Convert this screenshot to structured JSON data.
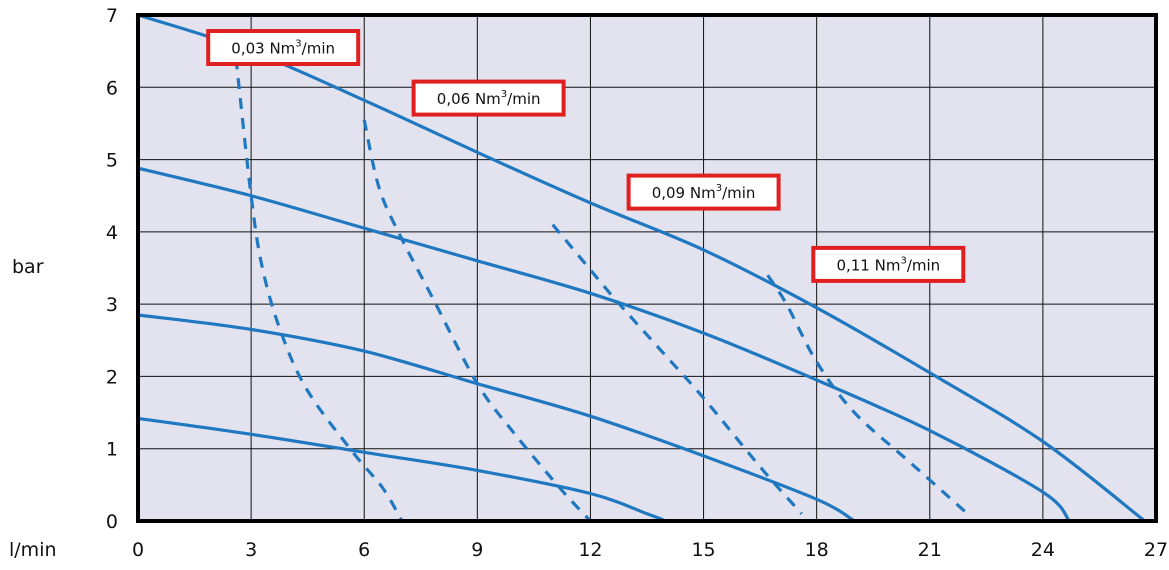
{
  "chart_data": {
    "type": "line",
    "title": "",
    "xlabel": "l/min",
    "ylabel": "bar",
    "xlim": [
      0,
      27
    ],
    "ylim": [
      0,
      7
    ],
    "x_ticks": [
      0,
      3,
      6,
      9,
      12,
      15,
      18,
      21,
      24,
      27
    ],
    "y_ticks": [
      0,
      1,
      2,
      3,
      4,
      5,
      6,
      7
    ],
    "grid": true,
    "plot_background": "#e3e3ef",
    "line_color": "#1f78c0",
    "label_border_color": "#e02020",
    "pressure_curves": [
      {
        "style": "solid",
        "points": [
          [
            0,
            7.0
          ],
          [
            3,
            6.5
          ],
          [
            6,
            5.82
          ],
          [
            9,
            5.1
          ],
          [
            12,
            4.4
          ],
          [
            15,
            3.75
          ],
          [
            18,
            2.95
          ],
          [
            21,
            2.05
          ],
          [
            24,
            1.1
          ],
          [
            26.7,
            0.0
          ]
        ]
      },
      {
        "style": "solid",
        "points": [
          [
            0,
            4.88
          ],
          [
            3,
            4.5
          ],
          [
            6,
            4.05
          ],
          [
            9,
            3.6
          ],
          [
            12,
            3.15
          ],
          [
            15,
            2.6
          ],
          [
            18,
            1.95
          ],
          [
            21,
            1.25
          ],
          [
            24,
            0.4
          ],
          [
            24.7,
            0.0
          ]
        ]
      },
      {
        "style": "solid",
        "points": [
          [
            0,
            2.85
          ],
          [
            3,
            2.65
          ],
          [
            6,
            2.35
          ],
          [
            9,
            1.9
          ],
          [
            12,
            1.45
          ],
          [
            15,
            0.9
          ],
          [
            18,
            0.3
          ],
          [
            19.0,
            0.0
          ]
        ]
      },
      {
        "style": "solid",
        "points": [
          [
            0,
            1.42
          ],
          [
            3,
            1.2
          ],
          [
            6,
            0.95
          ],
          [
            9,
            0.7
          ],
          [
            12,
            0.38
          ],
          [
            13.5,
            0.1
          ],
          [
            14.0,
            0.0
          ]
        ]
      }
    ],
    "air_consumption_curves": [
      {
        "name": "0,03 Nm³/min",
        "style": "dashed",
        "points": [
          [
            2.6,
            6.4
          ],
          [
            3.0,
            4.5
          ],
          [
            3.3,
            3.5
          ],
          [
            3.8,
            2.6
          ],
          [
            4.5,
            1.8
          ],
          [
            5.7,
            0.95
          ],
          [
            6.5,
            0.45
          ],
          [
            7.0,
            0.0
          ]
        ]
      },
      {
        "name": "0,06 Nm³/min",
        "style": "dashed",
        "points": [
          [
            6.0,
            5.55
          ],
          [
            6.4,
            4.6
          ],
          [
            7.0,
            3.9
          ],
          [
            7.8,
            3.1
          ],
          [
            9.0,
            1.9
          ],
          [
            10.0,
            1.2
          ],
          [
            11.2,
            0.45
          ],
          [
            12.0,
            0.0
          ]
        ]
      },
      {
        "name": "0,09 Nm³/min",
        "style": "dashed",
        "points": [
          [
            11.0,
            4.1
          ],
          [
            11.8,
            3.6
          ],
          [
            12.6,
            3.1
          ],
          [
            13.8,
            2.4
          ],
          [
            15.0,
            1.7
          ],
          [
            16.5,
            0.75
          ],
          [
            17.6,
            0.1
          ]
        ]
      },
      {
        "name": "0,11 Nm³/min",
        "style": "dashed",
        "points": [
          [
            16.7,
            3.4
          ],
          [
            17.2,
            3.0
          ],
          [
            18.0,
            2.2
          ],
          [
            19.0,
            1.5
          ],
          [
            20.5,
            0.8
          ],
          [
            22.0,
            0.1
          ]
        ]
      }
    ],
    "annotations": [
      {
        "prefix": "0,03 Nm",
        "sup": "3",
        "suffix": "/min",
        "anchor": [
          3.85,
          6.55
        ]
      },
      {
        "prefix": "0,06 Nm",
        "sup": "3",
        "suffix": "/min",
        "anchor": [
          9.3,
          5.85
        ]
      },
      {
        "prefix": "0,09 Nm",
        "sup": "3",
        "suffix": "/min",
        "anchor": [
          15.0,
          4.55
        ]
      },
      {
        "prefix": "0,11 Nm",
        "sup": "3",
        "suffix": "/min",
        "anchor": [
          19.9,
          3.55
        ]
      }
    ]
  }
}
